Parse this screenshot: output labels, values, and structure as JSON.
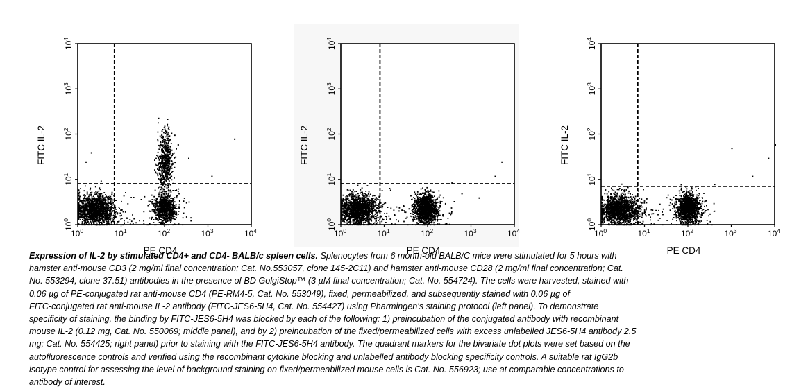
{
  "chart_data": [
    {
      "type": "scatter",
      "panel": "left",
      "xlabel": "PE CD4",
      "ylabel": "FITC IL-2",
      "xscale": "log",
      "yscale": "log",
      "xlim": [
        1,
        10000
      ],
      "ylim": [
        1,
        10000
      ],
      "xticks": [
        {
          "base": "10",
          "exp": "0"
        },
        {
          "base": "10",
          "exp": "1"
        },
        {
          "base": "10",
          "exp": "2"
        },
        {
          "base": "10",
          "exp": "3"
        },
        {
          "base": "10",
          "exp": "4"
        }
      ],
      "yticks": [
        {
          "base": "10",
          "exp": "0"
        },
        {
          "base": "10",
          "exp": "1"
        },
        {
          "base": "10",
          "exp": "2"
        },
        {
          "base": "10",
          "exp": "3"
        },
        {
          "base": "10",
          "exp": "4"
        }
      ],
      "quadrant_x": 7,
      "quadrant_y": 8,
      "populations": [
        {
          "name": "CD4-",
          "x_center": 2.5,
          "y_center": 2.2,
          "n": 1500
        },
        {
          "name": "CD4+ IL-2-",
          "x_center": 100,
          "y_center": 2.4,
          "n": 800
        },
        {
          "name": "CD4+ IL-2+",
          "x_center": 100,
          "y_center": 25,
          "n": 600
        }
      ],
      "outliers": [
        [
          4000,
          80
        ],
        [
          350,
          30
        ],
        [
          1200,
          12
        ],
        [
          200,
          60
        ],
        [
          60,
          15
        ],
        [
          2,
          40
        ],
        [
          1.5,
          25
        ]
      ]
    },
    {
      "type": "scatter",
      "panel": "middle",
      "xlabel": "PE CD4",
      "ylabel": "FITC IL-2",
      "xscale": "log",
      "yscale": "log",
      "xlim": [
        1,
        10000
      ],
      "ylim": [
        1,
        10000
      ],
      "xticks": [
        {
          "base": "10",
          "exp": "0"
        },
        {
          "base": "10",
          "exp": "1"
        },
        {
          "base": "10",
          "exp": "2"
        },
        {
          "base": "10",
          "exp": "3"
        },
        {
          "base": "10",
          "exp": "4"
        }
      ],
      "yticks": [
        {
          "base": "10",
          "exp": "0"
        },
        {
          "base": "10",
          "exp": "1"
        },
        {
          "base": "10",
          "exp": "2"
        },
        {
          "base": "10",
          "exp": "3"
        },
        {
          "base": "10",
          "exp": "4"
        }
      ],
      "quadrant_x": 8,
      "quadrant_y": 8,
      "populations": [
        {
          "name": "CD4-",
          "x_center": 2.5,
          "y_center": 2.2,
          "n": 1500
        },
        {
          "name": "CD4+ IL-2-",
          "x_center": 90,
          "y_center": 2.3,
          "n": 1300
        }
      ],
      "outliers": [
        [
          5000,
          25
        ],
        [
          3500,
          12
        ],
        [
          600,
          5
        ],
        [
          250,
          3
        ],
        [
          1500,
          4
        ]
      ]
    },
    {
      "type": "scatter",
      "panel": "right",
      "xlabel": "PE CD4",
      "ylabel": "FITC IL-2",
      "xscale": "log",
      "yscale": "log",
      "xlim": [
        1,
        10000
      ],
      "ylim": [
        1,
        10000
      ],
      "xticks": [
        {
          "base": "10",
          "exp": "0"
        },
        {
          "base": "10",
          "exp": "1"
        },
        {
          "base": "10",
          "exp": "2"
        },
        {
          "base": "10",
          "exp": "3"
        },
        {
          "base": "10",
          "exp": "4"
        }
      ],
      "yticks": [
        {
          "base": "10",
          "exp": "0"
        },
        {
          "base": "10",
          "exp": "1"
        },
        {
          "base": "10",
          "exp": "2"
        },
        {
          "base": "10",
          "exp": "3"
        },
        {
          "base": "10",
          "exp": "4"
        }
      ],
      "quadrant_x": 7,
      "quadrant_y": 7,
      "populations": [
        {
          "name": "CD4-",
          "x_center": 2.5,
          "y_center": 2.2,
          "n": 1500
        },
        {
          "name": "CD4+ IL-2-",
          "x_center": 100,
          "y_center": 2.4,
          "n": 1300
        }
      ],
      "outliers": [
        [
          1000,
          50
        ],
        [
          3000,
          12
        ],
        [
          7000,
          30
        ],
        [
          10000,
          60
        ],
        [
          400,
          8
        ],
        [
          150,
          4
        ]
      ]
    }
  ],
  "caption": {
    "lead": "Expression of IL-2 by stimulated CD4+ and CD4- BALB/c spleen cells.",
    "lines": [
      " Splenocytes from 6 month-old BALB/C mice were stimulated for 5 hours with",
      "hamster anti-mouse CD3 (2 mg/ml final concentration; Cat. No.553057, clone 145-2C11) and hamster anti-mouse CD28 (2 mg/ml final concentration; Cat.",
      "No. 553294, clone 37.51) antibodies in the presence of BD GolgiStop™ (3 µM final concentration; Cat. No. 554724). The cells were harvested, stained with",
      "0.06 µg of PE-conjugated rat anti-mouse CD4 (PE-RM4-5, Cat. No. 553049), fixed, permeabilized, and subsequently stained with 0.06 µg of",
      "FITC-conjugated rat anti-mouse IL-2 antibody (FITC-JES6-5H4, Cat. No. 554427) using Pharmingen's staining protocol (left panel). To demonstrate",
      "specificity of staining, the binding by FITC-JES6-5H4 was blocked by each of the following: 1) preincubation of the conjugated antibody with recombinant",
      "mouse IL-2 (0.12 mg, Cat. No. 550069; middle panel), and by 2) preincubation of the fixed/permeabilized cells with excess unlabelled JES6-5H4 antibody 2.5",
      "mg; Cat. No. 554425; right panel) prior to staining with the FITC-JES6-5H4 antibody. The quadrant markers for the bivariate dot plots were set based on the",
      "autofluorescence controls and verified using the recombinant cytokine blocking and unlabelled antibody blocking specificity controls. A suitable rat IgG2b",
      "isotype control for assessing the level of background staining on fixed/permeabilized mouse cells is Cat. No. 556923; use at comparable concentrations to",
      "antibody of interest."
    ]
  }
}
